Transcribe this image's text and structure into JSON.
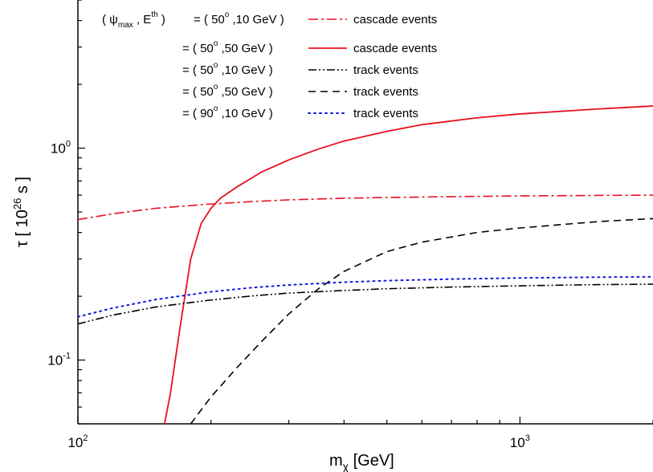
{
  "chart_data": {
    "type": "line",
    "xscale": "log",
    "yscale": "log",
    "xlim": [
      100,
      2000
    ],
    "ylim": [
      0.05,
      5.0
    ],
    "xlabel": {
      "main": "m",
      "sub": "χ",
      "unit": "[GeV]"
    },
    "ylabel": {
      "symbol": "τ",
      "open": "[",
      "base": "10",
      "exp": "26",
      "unit": "s",
      "close": "]"
    },
    "x_ticks": [
      {
        "value": 100,
        "base": "10",
        "exp": "2"
      },
      {
        "value": 1000,
        "base": "10",
        "exp": "3"
      }
    ],
    "y_ticks": [
      {
        "value": 1.0,
        "base": "10",
        "exp": "0"
      },
      {
        "value": 0.1,
        "base": "10",
        "exp": "-1"
      }
    ],
    "legend_header": {
      "open": "(",
      "psi": "ψ",
      "psi_sub": "max",
      "comma": ",",
      "e": "E",
      "e_sup": "th",
      "close": ")"
    },
    "series": [
      {
        "name": "cascade events",
        "prefix": "= ( 50",
        "deg": "o",
        "suffix": ",10 GeV )",
        "color": "#e8101e",
        "dash": "12,4,3,4",
        "width": 1.6,
        "x": [
          100,
          120,
          150,
          200,
          250,
          300,
          400,
          500,
          700,
          1000,
          1500,
          2000
        ],
        "y": [
          0.46,
          0.49,
          0.52,
          0.545,
          0.56,
          0.57,
          0.58,
          0.585,
          0.59,
          0.595,
          0.598,
          0.6
        ]
      },
      {
        "name": "cascade events",
        "prefix": "= ( 50",
        "deg": "o",
        "suffix": ",50 GeV )",
        "color": "#e8101e",
        "dash": "",
        "width": 1.8,
        "x": [
          157,
          162,
          170,
          180,
          190,
          200,
          210,
          230,
          260,
          300,
          350,
          400,
          500,
          600,
          800,
          1000,
          1500,
          2000
        ],
        "y": [
          0.05,
          0.07,
          0.14,
          0.3,
          0.44,
          0.52,
          0.58,
          0.66,
          0.77,
          0.88,
          0.99,
          1.08,
          1.2,
          1.29,
          1.39,
          1.45,
          1.53,
          1.58
        ]
      },
      {
        "name": "track events",
        "prefix": "= ( 50",
        "deg": "o",
        "suffix": ",10 GeV )",
        "color": "#000000",
        "dash": "10,3,2,3,2,3",
        "width": 1.6,
        "x": [
          100,
          120,
          150,
          200,
          250,
          300,
          400,
          500,
          700,
          1000,
          1500,
          2000
        ],
        "y": [
          0.148,
          0.163,
          0.178,
          0.192,
          0.201,
          0.207,
          0.213,
          0.217,
          0.221,
          0.224,
          0.227,
          0.228
        ]
      },
      {
        "name": "track events",
        "prefix": "= ( 50",
        "deg": "o",
        "suffix": ",50 GeV )",
        "color": "#000000",
        "dash": "9,6",
        "width": 1.6,
        "x": [
          180,
          200,
          230,
          260,
          300,
          350,
          400,
          500,
          600,
          800,
          1000,
          1500,
          2000
        ],
        "y": [
          0.05,
          0.067,
          0.093,
          0.122,
          0.165,
          0.217,
          0.262,
          0.325,
          0.36,
          0.4,
          0.42,
          0.45,
          0.465
        ]
      },
      {
        "name": "track events",
        "prefix": "= ( 90",
        "deg": "o",
        "suffix": ",10 GeV )",
        "color": "#1414e6",
        "dash": "2,5",
        "width": 2.0,
        "x": [
          100,
          120,
          150,
          200,
          250,
          300,
          400,
          500,
          700,
          1000,
          1500,
          2000
        ],
        "y": [
          0.16,
          0.176,
          0.193,
          0.21,
          0.22,
          0.226,
          0.233,
          0.237,
          0.241,
          0.244,
          0.246,
          0.247
        ]
      }
    ]
  }
}
